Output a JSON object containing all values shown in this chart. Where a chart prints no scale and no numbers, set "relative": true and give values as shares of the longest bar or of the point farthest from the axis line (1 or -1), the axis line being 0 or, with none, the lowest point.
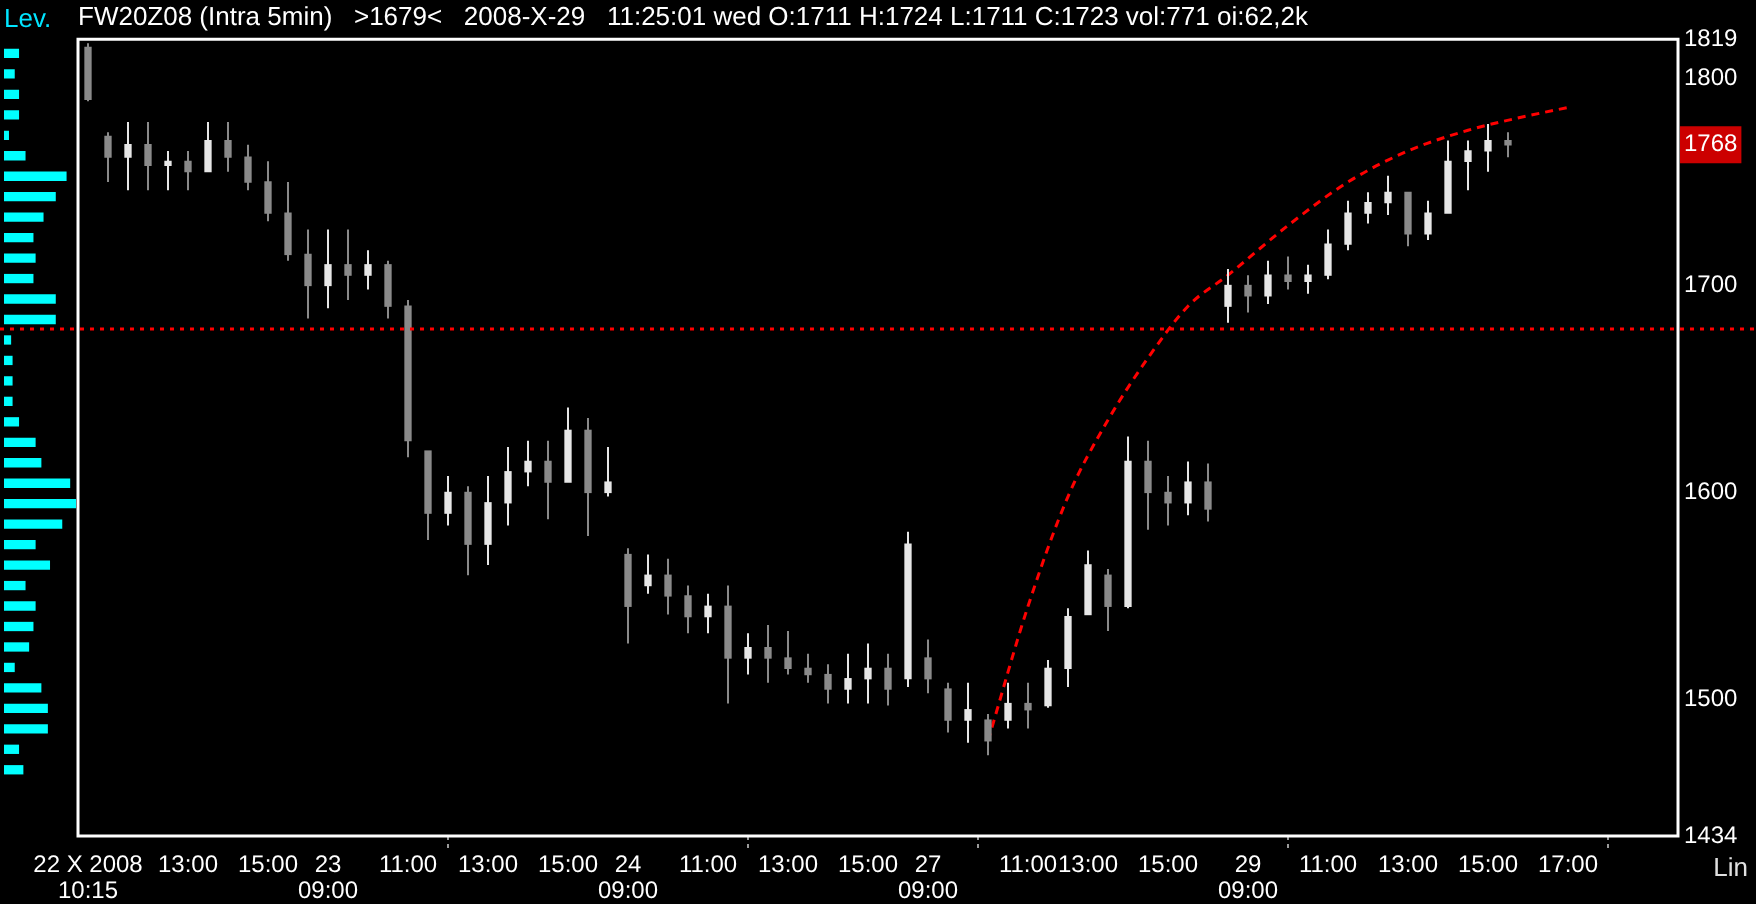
{
  "chart_data": [
    {
      "type": "bar",
      "orientation": "horizontal",
      "relative": true,
      "title": "Lev.",
      "color": "#00ffff",
      "categories": [
        null,
        null,
        null,
        null,
        null,
        null,
        null,
        null,
        null,
        null,
        null,
        null,
        null,
        null,
        null,
        null,
        null,
        null,
        null,
        null,
        null,
        null,
        null,
        null,
        null,
        null,
        null,
        null,
        null,
        null,
        null,
        null,
        null,
        null,
        null,
        null
      ],
      "values": [
        0.2,
        0.14,
        0.2,
        0.2,
        0.06,
        0.29,
        0.86,
        0.71,
        0.54,
        0.4,
        0.43,
        0.4,
        0.71,
        0.71,
        0.09,
        0.11,
        0.11,
        0.11,
        0.2,
        0.43,
        0.51,
        0.91,
        1,
        0.8,
        0.43,
        0.63,
        0.29,
        0.43,
        0.4,
        0.34,
        0.14,
        0.51,
        0.6,
        0.6,
        0.2,
        0.26
      ]
    },
    {
      "type": "candlestick",
      "title": "FW20Z08 (Intra 5min)   >1679<   2008-X-29   11:25:01 wed O:1711 H:1724 L:1711 C:1723 vol:771 oi:62,2k",
      "colors": [
        "#8a8a8a",
        "#8a8a8a",
        "#e6e6e6",
        "#8a8a8a",
        "#e6e6e6",
        "#8a8a8a",
        "#e6e6e6",
        "#8a8a8a",
        "#8a8a8a",
        "#8a8a8a",
        "#8a8a8a",
        "#8a8a8a",
        "#e6e6e6",
        "#8a8a8a",
        "#e6e6e6",
        "#8a8a8a",
        "#8a8a8a",
        "#8a8a8a",
        "#e6e6e6",
        "#8a8a8a",
        "#e6e6e6",
        "#e6e6e6",
        "#e6e6e6",
        "#8a8a8a",
        "#e6e6e6",
        "#8a8a8a",
        "#e6e6e6",
        "#8a8a8a",
        "#e6e6e6",
        "#8a8a8a",
        "#8a8a8a",
        "#e6e6e6",
        "#8a8a8a",
        "#e6e6e6",
        "#8a8a8a",
        "#8a8a8a",
        "#8a8a8a",
        "#8a8a8a",
        "#e6e6e6",
        "#e6e6e6",
        "#8a8a8a",
        "#e6e6e6",
        "#8a8a8a",
        "#8a8a8a",
        "#e6e6e6",
        "#8a8a8a",
        "#e6e6e6",
        "#8a8a8a",
        "#e6e6e6",
        "#e6e6e6",
        "#e6e6e6",
        "#8a8a8a",
        "#e6e6e6",
        "#8a8a8a",
        "#8a8a8a",
        "#e6e6e6",
        "#8a8a8a",
        "#e6e6e6",
        "#8a8a8a",
        "#e6e6e6",
        "#8a8a8a",
        "#e6e6e6",
        "#e6e6e6",
        "#e6e6e6",
        "#e6e6e6",
        "#e6e6e6",
        "#8a8a8a",
        "#e6e6e6",
        "#e6e6e6",
        "#e6e6e6",
        "#e6e6e6",
        "#8a8a8a",
        null,
        null,
        null,
        null,
        null,
        null,
        null,
        null
      ],
      "categories": [
        "22 X 2008\n10:15",
        null,
        null,
        null,
        null,
        "13:00",
        null,
        null,
        null,
        "15:00",
        null,
        null,
        "23\n09:00",
        null,
        null,
        null,
        "11:00",
        null,
        null,
        null,
        "13:00",
        null,
        null,
        null,
        "15:00",
        null,
        null,
        "24\n09:00",
        null,
        null,
        null,
        "11:00",
        null,
        null,
        null,
        "13:00",
        null,
        null,
        null,
        "15:00",
        null,
        null,
        "27\n09:00",
        null,
        null,
        null,
        null,
        "11:00",
        null,
        null,
        "13:00",
        null,
        null,
        null,
        "15:00",
        null,
        null,
        null,
        "29\n09:00",
        null,
        null,
        null,
        "11:00",
        null,
        null,
        null,
        "13:00",
        null,
        null,
        null,
        "15:00",
        null,
        null,
        null,
        "17:00",
        null,
        null,
        null,
        null,
        null
      ],
      "ohlc": [
        [
          1815,
          1817,
          1789,
          1790
        ],
        [
          1772,
          1774,
          1750,
          1762
        ],
        [
          1762,
          1779,
          1746,
          1768
        ],
        [
          1768,
          1779,
          1746,
          1758
        ],
        [
          1758,
          1765,
          1746,
          1760
        ],
        [
          1760,
          1765,
          1746,
          1755
        ],
        [
          1755,
          1779,
          1755,
          1770
        ],
        [
          1770,
          1779,
          1755,
          1762
        ],
        [
          1762,
          1768,
          1746,
          1750
        ],
        [
          1750,
          1760,
          1731,
          1735
        ],
        [
          1735,
          1750,
          1712,
          1715
        ],
        [
          1715,
          1727,
          1684,
          1700
        ],
        [
          1700,
          1727,
          1689,
          1710
        ],
        [
          1710,
          1727,
          1693,
          1705
        ],
        [
          1705,
          1717,
          1698,
          1710
        ],
        [
          1710,
          1712,
          1684,
          1690
        ],
        [
          1690,
          1693,
          1617,
          1625
        ],
        [
          1620,
          1620,
          1577,
          1590
        ],
        [
          1590,
          1608,
          1584,
          1600
        ],
        [
          1600,
          1603,
          1560,
          1575
        ],
        [
          1575,
          1608,
          1565,
          1595
        ],
        [
          1595,
          1622,
          1584,
          1610
        ],
        [
          1610,
          1625,
          1603,
          1615
        ],
        [
          1615,
          1625,
          1587,
          1605
        ],
        [
          1605,
          1641,
          1605,
          1630
        ],
        [
          1630,
          1636,
          1579,
          1600
        ],
        [
          1600,
          1622,
          1598,
          1605
        ],
        [
          1570,
          1573,
          1527,
          1545
        ],
        [
          1555,
          1570,
          1551,
          1560
        ],
        [
          1560,
          1568,
          1541,
          1550
        ],
        [
          1550,
          1555,
          1532,
          1540
        ],
        [
          1540,
          1551,
          1532,
          1545
        ],
        [
          1545,
          1555,
          1498,
          1520
        ],
        [
          1520,
          1532,
          1512,
          1525
        ],
        [
          1525,
          1536,
          1508,
          1520
        ],
        [
          1520,
          1533,
          1512,
          1515
        ],
        [
          1515,
          1522,
          1508,
          1512
        ],
        [
          1512,
          1517,
          1498,
          1505
        ],
        [
          1505,
          1522,
          1498,
          1510
        ],
        [
          1510,
          1527,
          1498,
          1515
        ],
        [
          1515,
          1522,
          1497,
          1505
        ],
        [
          1510,
          1581,
          1506,
          1575
        ],
        [
          1520,
          1529,
          1503,
          1510
        ],
        [
          1505,
          1508,
          1484,
          1490
        ],
        [
          1490,
          1508,
          1479,
          1495
        ],
        [
          1490,
          1493,
          1473,
          1480
        ],
        [
          1490,
          1508,
          1486,
          1498
        ],
        [
          1498,
          1508,
          1486,
          1495
        ],
        [
          1497,
          1519,
          1496,
          1515
        ],
        [
          1515,
          1544,
          1506,
          1540
        ],
        [
          1541,
          1572,
          1541,
          1565
        ],
        [
          1560,
          1563,
          1533,
          1545
        ],
        [
          1545,
          1627,
          1544,
          1615
        ],
        [
          1615,
          1625,
          1582,
          1600
        ],
        [
          1600,
          1608,
          1584,
          1595
        ],
        [
          1595,
          1615,
          1589,
          1605
        ],
        [
          1605,
          1614,
          1586,
          1592
        ],
        [
          1690,
          1708,
          1682,
          1700
        ],
        [
          1700,
          1705,
          1687,
          1695
        ],
        [
          1695,
          1712,
          1691,
          1705
        ],
        [
          1705,
          1714,
          1698,
          1702
        ],
        [
          1702,
          1710,
          1696,
          1705
        ],
        [
          1705,
          1727,
          1703,
          1720
        ],
        [
          1720,
          1741,
          1717,
          1735
        ],
        [
          1735,
          1745,
          1730,
          1740
        ],
        [
          1740,
          1753,
          1734,
          1745
        ],
        [
          1745,
          1745,
          1719,
          1725
        ],
        [
          1725,
          1741,
          1722,
          1735
        ],
        [
          1735,
          1770,
          1735,
          1760
        ],
        [
          1760,
          1770,
          1746,
          1765
        ],
        [
          1765,
          1778,
          1755,
          1770
        ],
        [
          1770,
          1774,
          1762,
          1768
        ],
        null,
        null,
        null,
        null,
        null,
        null,
        null,
        null
      ],
      "series": [
        {
          "type": "line",
          "color": "#ff0000",
          "line_style": "dashed",
          "values": [
            null,
            null,
            null,
            null,
            null,
            null,
            null,
            null,
            null,
            null,
            null,
            null,
            null,
            null,
            null,
            null,
            null,
            null,
            null,
            null,
            null,
            null,
            null,
            null,
            null,
            null,
            null,
            null,
            null,
            null,
            null,
            null,
            null,
            null,
            null,
            null,
            null,
            null,
            null,
            null,
            null,
            null,
            null,
            null,
            null,
            1480,
            null,
            1545,
            null,
            1598,
            null,
            1635,
            null,
            1665,
            null,
            1690,
            null,
            1705,
            null,
            null,
            1729,
            null,
            null,
            1750,
            null,
            null,
            1765,
            null,
            null,
            1775,
            null,
            null,
            1782,
            null,
            1786,
            null,
            null,
            null,
            null,
            null
          ]
        }
      ],
      "ylim": [
        1434,
        1819
      ],
      "yticks": [
        1434,
        1500,
        1600,
        1700,
        1768,
        1800,
        1819
      ],
      "ref_lines": [
        {
          "axis": "y",
          "value": 1679,
          "color": "#ff0000",
          "line_style": "dotted"
        }
      ],
      "annotations": [
        "Lin"
      ]
    }
  ]
}
